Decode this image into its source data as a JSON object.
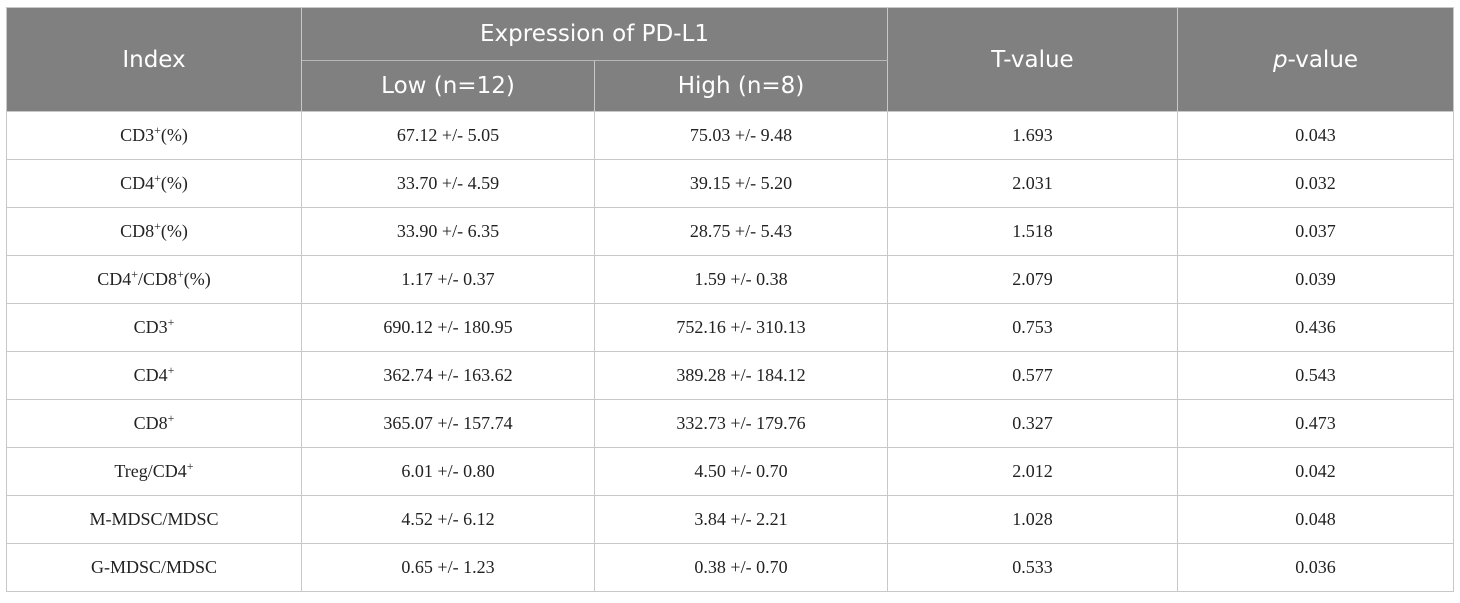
{
  "table": {
    "header": {
      "index": "Index",
      "expression_group": "Expression of PD-L1",
      "low": "Low (n=12)",
      "high": "High (n=8)",
      "t_value": "T-value",
      "p_value_italic": "p",
      "p_value_rest": "-value"
    },
    "rows": [
      {
        "index_base": "CD3",
        "index_sup": "+",
        "index_tail": "(%)",
        "low": "67.12 +/- 5.05",
        "high": "75.03 +/- 9.48",
        "t": "1.693",
        "p": "0.043"
      },
      {
        "index_base": "CD4",
        "index_sup": "+",
        "index_tail": "(%)",
        "low": "33.70 +/- 4.59",
        "high": "39.15 +/- 5.20",
        "t": "2.031",
        "p": "0.032"
      },
      {
        "index_base": "CD8",
        "index_sup": "+",
        "index_tail": "(%)",
        "low": "33.90 +/- 6.35",
        "high": "28.75 +/- 5.43",
        "t": "1.518",
        "p": "0.037"
      },
      {
        "index_base": "CD4",
        "index_sup": "+",
        "index_mid": "/CD8",
        "index_sup2": "+",
        "index_tail": "(%)",
        "low": "1.17 +/- 0.37",
        "high": "1.59 +/- 0.38",
        "t": "2.079",
        "p": "0.039"
      },
      {
        "index_base": "CD3",
        "index_sup": "+",
        "index_tail": "",
        "low": "690.12 +/- 180.95",
        "high": "752.16 +/- 310.13",
        "t": "0.753",
        "p": "0.436"
      },
      {
        "index_base": "CD4",
        "index_sup": "+",
        "index_tail": "",
        "low": "362.74 +/- 163.62",
        "high": "389.28 +/- 184.12",
        "t": "0.577",
        "p": "0.543"
      },
      {
        "index_base": "CD8",
        "index_sup": "+",
        "index_tail": "",
        "low": "365.07 +/- 157.74",
        "high": "332.73 +/- 179.76",
        "t": "0.327",
        "p": "0.473"
      },
      {
        "index_base": "Treg/CD4",
        "index_sup": "+",
        "index_tail": "",
        "low": "6.01 +/- 0.80",
        "high": "4.50 +/- 0.70",
        "t": "2.012",
        "p": "0.042"
      },
      {
        "index_base": "M-MDSC/MDSC",
        "index_sup": "",
        "index_tail": "",
        "low": "4.52 +/- 6.12",
        "high": "3.84 +/- 2.21",
        "t": "1.028",
        "p": "0.048"
      },
      {
        "index_base": "G-MDSC/MDSC",
        "index_sup": "",
        "index_tail": "",
        "low": "0.65 +/- 1.23",
        "high": "0.38 +/- 0.70",
        "t": "0.533",
        "p": "0.036"
      }
    ]
  }
}
